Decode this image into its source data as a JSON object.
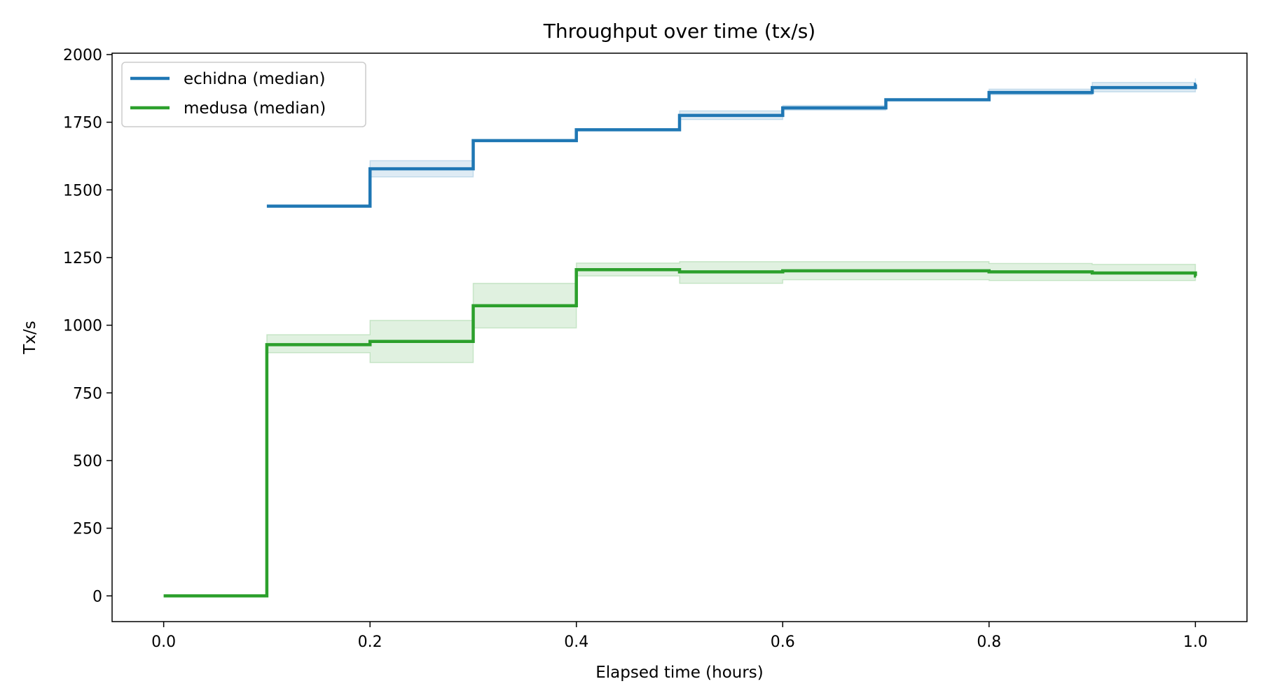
{
  "chart_data": {
    "type": "line",
    "step": "post",
    "title": "Throughput over time (tx/s)",
    "xlabel": "Elapsed time (hours)",
    "ylabel": "Tx/s",
    "xlim": [
      -0.05,
      1.05
    ],
    "ylim": [
      -95,
      2005
    ],
    "xticks": [
      0.0,
      0.2,
      0.4,
      0.6,
      0.8,
      1.0
    ],
    "xtick_labels": [
      "0.0",
      "0.2",
      "0.4",
      "0.6",
      "0.8",
      "1.0"
    ],
    "yticks": [
      0,
      250,
      500,
      750,
      1000,
      1250,
      1500,
      1750,
      2000
    ],
    "ytick_labels": [
      "0",
      "250",
      "500",
      "750",
      "1000",
      "1250",
      "1500",
      "1750",
      "2000"
    ],
    "grid": false,
    "legend_position": "top-left",
    "series": [
      {
        "name": "echidna (median)",
        "color": "#1f77b4",
        "band_color": "#1f77b4",
        "x": [
          0.1,
          0.2,
          0.3,
          0.4,
          0.5,
          0.6,
          0.7,
          0.8,
          0.9,
          1.0
        ],
        "values": [
          1440,
          1578,
          1682,
          1722,
          1775,
          1803,
          1833,
          1860,
          1878,
          1890
        ],
        "lower": [
          1440,
          1548,
          1682,
          1722,
          1760,
          1795,
          1833,
          1852,
          1862,
          1862
        ],
        "upper": [
          1440,
          1608,
          1682,
          1722,
          1792,
          1812,
          1833,
          1872,
          1897,
          1912
        ]
      },
      {
        "name": "medusa (median)",
        "color": "#2ca02c",
        "band_color": "#2ca02c",
        "x": [
          0.0,
          0.1,
          0.2,
          0.3,
          0.4,
          0.5,
          0.6,
          0.7,
          0.8,
          0.9,
          1.0
        ],
        "values": [
          0,
          928,
          940,
          1072,
          1205,
          1197,
          1201,
          1201,
          1197,
          1193,
          1182
        ],
        "lower": [
          0,
          898,
          862,
          990,
          1182,
          1155,
          1168,
          1168,
          1165,
          1165,
          1165
        ],
        "upper": [
          0,
          965,
          1018,
          1155,
          1230,
          1235,
          1235,
          1235,
          1228,
          1225,
          1225
        ]
      }
    ]
  }
}
